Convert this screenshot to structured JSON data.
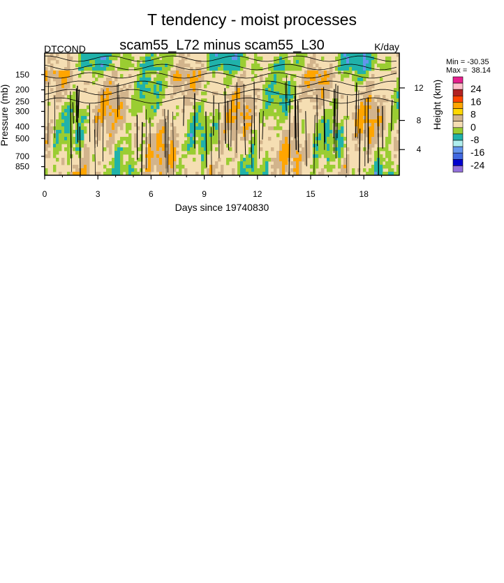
{
  "chart_data": {
    "type": "heatmap",
    "title": "T tendency - moist processes",
    "subtitle": "scam55_L72 minus scam55_L30",
    "left_label": "DTCOND",
    "units": "K/day",
    "xlabel": "Days since 19740830",
    "ylabel": "Pressure (mb)",
    "y2label": "Height (km)",
    "xlim": [
      0,
      20
    ],
    "x_ticks": [
      0,
      3,
      6,
      9,
      12,
      15,
      18
    ],
    "y_ticks": [
      150,
      200,
      250,
      300,
      400,
      500,
      700,
      850
    ],
    "y_scale": "log",
    "ylim": [
      100,
      1000
    ],
    "y2_ticks": [
      4,
      8,
      12
    ],
    "min_label": "Min = -30.35",
    "max_label": "Max =  38.14",
    "colorbar_labels": [
      "24",
      "16",
      "8",
      "0",
      "-8",
      "-16",
      "-24"
    ],
    "colorbar_colors": [
      "#e5208e",
      "#ffc0cb",
      "#b22222",
      "#ff4500",
      "#ffa500",
      "#ffd700",
      "#d2b48c",
      "#f5deb3",
      "#9acd32",
      "#20b2aa",
      "#afeeee",
      "#6495ed",
      "#4169e1",
      "#0000cd",
      "#9370db"
    ],
    "levels": [
      -24,
      -20,
      -16,
      -12,
      -8,
      -4,
      0,
      4,
      8,
      12,
      16,
      20,
      24
    ]
  }
}
